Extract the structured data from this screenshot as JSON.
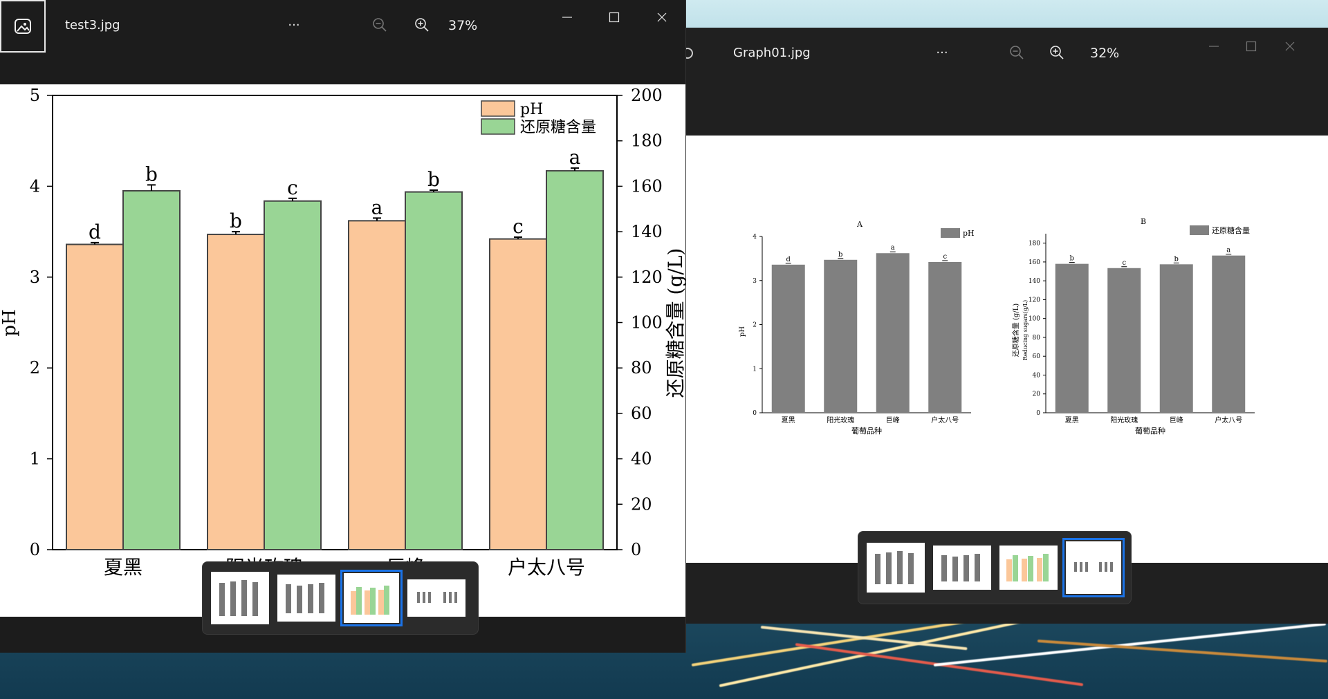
{
  "left_window": {
    "filename": "test3.jpg",
    "more_label": "···",
    "zoom": "37%",
    "chart_data": {
      "type": "bar",
      "categories": [
        "夏黑",
        "阳光玫瑰",
        "巨峰",
        "户太八号"
      ],
      "series": [
        {
          "name": "pH",
          "axis": "left",
          "color": "#fbc79a",
          "values": [
            3.36,
            3.47,
            3.62,
            3.42
          ],
          "errors": [
            0.02,
            0.03,
            0.03,
            0.02
          ],
          "letters": [
            "d",
            "b",
            "a",
            "c"
          ]
        },
        {
          "name": "还原糖含量",
          "axis": "right",
          "color": "#99d595",
          "values": [
            158,
            153.5,
            157.5,
            166.8
          ],
          "errors": [
            2.6,
            1.2,
            0.8,
            1.2
          ],
          "letters": [
            "b",
            "c",
            "b",
            "a"
          ]
        }
      ],
      "ylabel_left": "pH",
      "ylabel_right": "还原糖含量 (g/L)",
      "ylim_left": [
        0,
        5
      ],
      "ylim_right": [
        0,
        200
      ],
      "yticks_left": [
        "0",
        "1",
        "2",
        "3",
        "4",
        "5"
      ],
      "yticks_right": [
        "0",
        "20",
        "40",
        "60",
        "80",
        "100",
        "120",
        "140",
        "160",
        "180",
        "200"
      ],
      "legend_position": "top-right"
    }
  },
  "right_window": {
    "filename": "Graph01.jpg",
    "more_label": "···",
    "zoom": "32%",
    "chart_data": [
      {
        "type": "bar",
        "panel_label": "A",
        "categories": [
          "夏黑",
          "阳光玫瑰",
          "巨峰",
          "户太八号"
        ],
        "series": [
          {
            "name": "pH",
            "color": "#808080",
            "values": [
              3.36,
              3.47,
              3.62,
              3.42
            ],
            "letters": [
              "d",
              "b",
              "a",
              "c"
            ]
          }
        ],
        "xlabel": "葡萄品种",
        "ylabel": "pH",
        "ylim": [
          0,
          4
        ],
        "yticks": [
          "0",
          "1",
          "2",
          "3",
          "4"
        ]
      },
      {
        "type": "bar",
        "panel_label": "B",
        "categories": [
          "夏黑",
          "阳光玫瑰",
          "巨峰",
          "户太八号"
        ],
        "series": [
          {
            "name": "还原糖含量",
            "color": "#808080",
            "values": [
              158,
              153.5,
              157.5,
              166.8
            ],
            "letters": [
              "b",
              "c",
              "b",
              "a"
            ]
          }
        ],
        "xlabel": "葡萄品种",
        "ylabel": "还原糖含量 (g/L)",
        "ylabel2": "Reducing sugars(g/L)",
        "ylim": [
          0,
          190
        ],
        "yticks": [
          "0",
          "20",
          "40",
          "60",
          "80",
          "100",
          "120",
          "140",
          "160",
          "180"
        ]
      }
    ]
  }
}
